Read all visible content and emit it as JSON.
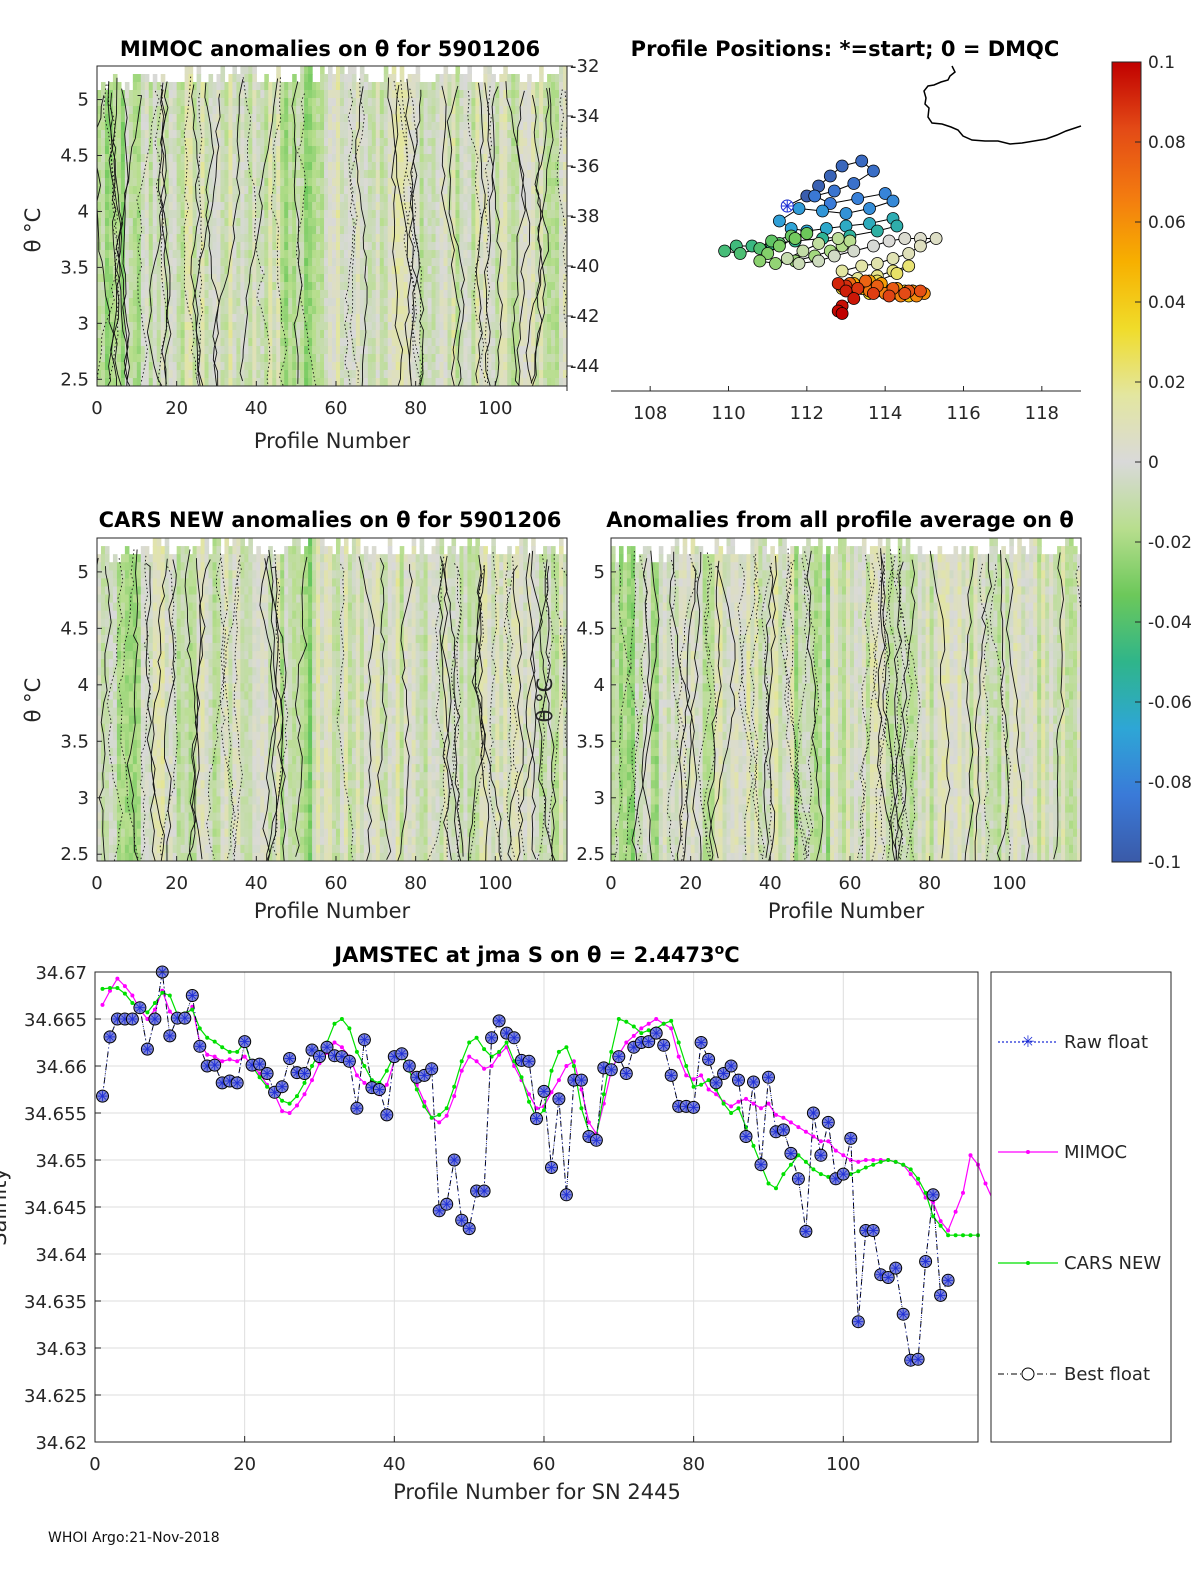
{
  "footer": "WHOI Argo:21-Nov-2018",
  "colors": {
    "raw_float": "#1f2fd6",
    "mimoc": "#ff00ff",
    "cars_new": "#00e000",
    "best_float": "#000000",
    "best_marker_fill": "#7f86d8",
    "coast": "#000000",
    "axis": "#262626",
    "grid": "#dedede"
  },
  "chart_data": [
    {
      "id": "mimoc",
      "type": "heatmap",
      "title": "MIMOC anomalies on θ  for 5901206",
      "xlabel": "Profile Number",
      "ylabel": "θ °C",
      "xlim": [
        0,
        118
      ],
      "ylim": [
        2.44,
        5.3
      ],
      "xticks": [
        "0",
        "20",
        "40",
        "60",
        "80",
        "100"
      ],
      "xtick_values": [
        0,
        20,
        40,
        60,
        80,
        100
      ],
      "yticks": [
        "2.5",
        "3",
        "3.5",
        "4",
        "4.5",
        "5"
      ],
      "ytick_values": [
        2.5,
        3,
        3.5,
        4,
        4.5,
        5
      ],
      "seed": 7
    },
    {
      "id": "positions",
      "type": "scatter",
      "title": "Profile Positions: *=start; 0 = DMQC",
      "xlim": [
        107,
        119
      ],
      "ylim": [
        -45,
        -32
      ],
      "xticks": [
        "108",
        "110",
        "112",
        "114",
        "116",
        "118"
      ],
      "xtick_values": [
        108,
        110,
        112,
        114,
        116,
        118
      ],
      "yticks": [
        "-32",
        "-34",
        "-36",
        "-38",
        "-40",
        "-42",
        "-44"
      ],
      "ytick_values": [
        -32,
        -34,
        -36,
        -38,
        -40,
        -42,
        -44
      ],
      "start": [
        111.5,
        -37.6
      ],
      "lon": [
        111.5,
        112.0,
        112.3,
        112.6,
        112.9,
        113.4,
        113.7,
        113.2,
        112.7,
        112.2,
        112.6,
        113.3,
        114.0,
        114.2,
        113.6,
        113.0,
        112.4,
        111.8,
        111.3,
        111.6,
        112.0,
        112.5,
        113.0,
        113.6,
        114.2,
        114.3,
        113.8,
        113.1,
        112.4,
        111.7,
        111.1,
        110.6,
        110.2,
        109.9,
        110.3,
        110.8,
        111.3,
        111.1,
        111.6,
        112.0,
        111.7,
        111.3,
        111.0,
        110.8,
        111.2,
        111.7,
        112.2,
        112.6,
        112.9,
        113.1,
        112.8,
        112.3,
        111.9,
        111.5,
        111.8,
        112.3,
        112.7,
        113.2,
        113.7,
        114.1,
        114.5,
        114.9,
        115.3,
        114.9,
        114.6,
        114.2,
        113.8,
        113.4,
        112.9,
        113.3,
        113.8,
        114.2,
        114.6,
        114.3,
        113.8,
        113.3,
        112.9,
        113.2,
        113.6,
        114.0,
        114.3,
        114.5,
        114.7,
        114.9,
        114.6,
        114.2,
        113.8,
        113.4,
        113.0,
        113.2,
        113.6,
        113.9,
        114.3,
        114.7,
        115.0,
        114.8,
        114.4,
        114.0,
        113.6,
        113.3,
        112.9,
        113.1,
        113.5,
        113.8,
        114.2,
        114.6,
        114.9,
        114.5,
        114.1,
        113.7,
        113.3,
        113.0,
        112.8,
        113.0,
        113.2,
        112.9,
        112.8,
        112.9
      ],
      "lat": [
        -37.6,
        -37.2,
        -36.8,
        -36.4,
        -36.0,
        -35.8,
        -36.2,
        -36.7,
        -37.0,
        -37.2,
        -37.5,
        -37.3,
        -37.1,
        -37.4,
        -37.7,
        -37.9,
        -37.8,
        -37.7,
        -38.2,
        -38.5,
        -38.6,
        -38.5,
        -38.4,
        -38.3,
        -38.1,
        -38.4,
        -38.6,
        -38.8,
        -38.9,
        -39.0,
        -39.1,
        -39.2,
        -39.2,
        -39.4,
        -39.5,
        -39.3,
        -39.1,
        -39.0,
        -38.8,
        -38.7,
        -38.9,
        -39.2,
        -39.5,
        -39.8,
        -39.9,
        -39.8,
        -39.6,
        -39.4,
        -39.2,
        -39.0,
        -38.9,
        -39.1,
        -39.4,
        -39.7,
        -39.9,
        -39.8,
        -39.6,
        -39.4,
        -39.2,
        -39.0,
        -38.9,
        -38.9,
        -38.9,
        -39.2,
        -39.5,
        -39.7,
        -39.9,
        -40.0,
        -40.2,
        -40.5,
        -40.4,
        -40.2,
        -40.0,
        -40.3,
        -40.6,
        -40.8,
        -40.9,
        -41.0,
        -41.1,
        -41.0,
        -40.9,
        -41.0,
        -41.0,
        -41.1,
        -41.2,
        -41.1,
        -41.0,
        -40.9,
        -40.8,
        -40.7,
        -40.6,
        -40.7,
        -40.9,
        -41.0,
        -41.1,
        -41.2,
        -41.2,
        -41.1,
        -41.0,
        -40.9,
        -40.8,
        -40.7,
        -40.6,
        -40.8,
        -40.9,
        -41.0,
        -41.0,
        -41.1,
        -41.2,
        -41.1,
        -40.9,
        -40.8,
        -40.7,
        -41.0,
        -41.3,
        -41.6,
        -41.8,
        -41.9
      ],
      "colorbar": {
        "ticks": [
          "0.1",
          "0.08",
          "0.06",
          "0.04",
          "0.02",
          "0",
          "-0.02",
          "-0.04",
          "-0.06",
          "-0.08",
          "-0.1"
        ],
        "tick_values": [
          0.1,
          0.08,
          0.06,
          0.04,
          0.02,
          0,
          -0.02,
          -0.04,
          -0.06,
          -0.08,
          -0.1
        ],
        "range": [
          -0.1,
          0.1
        ],
        "stops": [
          "#3a5aa8",
          "#3a7ad8",
          "#2ea6d6",
          "#2fb58a",
          "#6cc85a",
          "#b8de8e",
          "#d9d9d9",
          "#e3e6a0",
          "#f0dc2a",
          "#f7b000",
          "#f37a10",
          "#e34a16",
          "#c00000"
        ]
      }
    },
    {
      "id": "cars",
      "type": "heatmap",
      "title": "CARS NEW anomalies on θ for 5901206",
      "xlabel": "Profile Number",
      "ylabel": "θ °C",
      "xlim": [
        0,
        118
      ],
      "ylim": [
        2.44,
        5.3
      ],
      "xticks": [
        "0",
        "20",
        "40",
        "60",
        "80",
        "100"
      ],
      "xtick_values": [
        0,
        20,
        40,
        60,
        80,
        100
      ],
      "yticks": [
        "2.5",
        "3",
        "3.5",
        "4",
        "4.5",
        "5"
      ],
      "ytick_values": [
        2.5,
        3,
        3.5,
        4,
        4.5,
        5
      ],
      "seed": 19
    },
    {
      "id": "allavg",
      "type": "heatmap",
      "title": "Anomalies from all profile average on θ",
      "xlabel": "Profile Number",
      "ylabel": "θ °C",
      "xlim": [
        0,
        118
      ],
      "ylim": [
        2.44,
        5.3
      ],
      "xticks": [
        "0",
        "20",
        "40",
        "60",
        "80",
        "100"
      ],
      "xtick_values": [
        0,
        20,
        40,
        60,
        80,
        100
      ],
      "yticks": [
        "2.5",
        "3",
        "3.5",
        "4",
        "4.5",
        "5"
      ],
      "ytick_values": [
        2.5,
        3,
        3.5,
        4,
        4.5,
        5
      ],
      "seed": 31
    },
    {
      "id": "salinity",
      "type": "line",
      "title": "JAMSTEC at jma S on θ = 2.4473°C",
      "title_prefix": "JAMSTEC at jma S on θ = 2.4473",
      "title_sup": "o",
      "title_suffix": "C",
      "xlabel": "Profile Number for SN 2445",
      "ylabel": "Salinity",
      "xlim": [
        0,
        118
      ],
      "ylim": [
        34.62,
        34.67
      ],
      "xticks": [
        "0",
        "20",
        "40",
        "60",
        "80",
        "100"
      ],
      "xtick_values": [
        0,
        20,
        40,
        60,
        80,
        100
      ],
      "yticks": [
        "34.62",
        "34.625",
        "34.63",
        "34.635",
        "34.64",
        "34.645",
        "34.65",
        "34.655",
        "34.66",
        "34.665",
        "34.67"
      ],
      "ytick_values": [
        34.62,
        34.625,
        34.63,
        34.635,
        34.64,
        34.645,
        34.65,
        34.655,
        34.66,
        34.665,
        34.67
      ],
      "legend": [
        "Raw float",
        "MIMOC",
        "CARS NEW",
        "Best float"
      ],
      "series": [
        {
          "name": "Raw float",
          "values": [
            34.6568,
            34.6631,
            34.665,
            34.665,
            34.665,
            34.6662,
            34.6618,
            34.665,
            34.67,
            34.6632,
            34.6651,
            34.6651,
            34.6675,
            34.6621,
            34.66,
            34.6601,
            34.6582,
            34.6584,
            34.6582,
            34.6626,
            34.6601,
            34.6602,
            34.6592,
            34.6572,
            34.6578,
            34.6608,
            34.6593,
            34.6592,
            34.6617,
            34.661,
            34.662,
            34.6611,
            34.661,
            34.6605,
            34.6555,
            34.6628,
            34.6577,
            34.6575,
            34.6548,
            34.661,
            34.6613,
            34.66,
            34.6588,
            34.659,
            34.6597,
            34.6446,
            34.6453,
            34.65,
            34.6436,
            34.6427,
            34.6467,
            34.6467,
            34.663,
            34.6648,
            34.6635,
            34.663,
            34.6606,
            34.6605,
            34.6544,
            34.6573,
            34.6492,
            34.6565,
            34.6463,
            34.6585,
            34.6585,
            34.6525,
            34.6521,
            34.6598,
            34.6596,
            34.661,
            34.6592,
            34.662,
            34.6625,
            34.6626,
            34.6635,
            34.6622,
            34.659,
            34.6557,
            34.6557,
            34.6556,
            34.6625,
            34.6607,
            34.6582,
            34.6592,
            34.66,
            34.6585,
            34.6525,
            34.6583,
            34.6495,
            34.6588,
            34.653,
            34.6532,
            34.6507,
            34.648,
            34.6424,
            34.655,
            34.6505,
            34.654,
            34.648,
            34.6485,
            34.6523,
            34.6328,
            34.6425,
            34.6425,
            34.6378,
            34.6375,
            34.6385,
            34.6336,
            34.6287,
            34.6288,
            34.6392,
            34.6463,
            34.6356,
            34.6372
          ]
        },
        {
          "name": "MIMOC",
          "values": [
            34.6665,
            34.668,
            34.6693,
            34.6685,
            34.6675,
            34.666,
            34.665,
            34.666,
            34.668,
            34.6658,
            34.665,
            34.6652,
            34.6663,
            34.6625,
            34.6612,
            34.661,
            34.6605,
            34.6607,
            34.6605,
            34.661,
            34.66,
            34.6592,
            34.658,
            34.657,
            34.6552,
            34.655,
            34.6558,
            34.657,
            34.6585,
            34.6603,
            34.6614,
            34.6625,
            34.662,
            34.661,
            34.659,
            34.6582,
            34.6578,
            34.657,
            34.658,
            34.6605,
            34.6612,
            34.66,
            34.658,
            34.6562,
            34.6545,
            34.654,
            34.6547,
            34.6568,
            34.6595,
            34.661,
            34.6605,
            34.6597,
            34.66,
            34.6612,
            34.662,
            34.66,
            34.6585,
            34.657,
            34.6555,
            34.6557,
            34.6572,
            34.6585,
            34.66,
            34.6605,
            34.6575,
            34.654,
            34.6528,
            34.656,
            34.6595,
            34.6612,
            34.6625,
            34.6632,
            34.664,
            34.6645,
            34.665,
            34.6645,
            34.664,
            34.661,
            34.659,
            34.6586,
            34.659,
            34.6575,
            34.657,
            34.6562,
            34.6557,
            34.6562,
            34.6565,
            34.656,
            34.6555,
            34.656,
            34.6548,
            34.6545,
            34.654,
            34.6535,
            34.653,
            34.6525,
            34.652,
            34.652,
            34.651,
            34.6505,
            34.65,
            34.6498,
            34.65,
            34.65,
            34.65,
            34.65,
            34.6498,
            34.6495,
            34.6485,
            34.6475,
            34.646,
            34.6455,
            34.6435,
            34.6425,
            34.6445,
            34.6465,
            34.6505,
            34.6495,
            34.6475,
            34.6457
          ]
        },
        {
          "name": "CARS NEW",
          "values": [
            34.6682,
            34.6683,
            34.6683,
            34.6677,
            34.6667,
            34.6662,
            34.6657,
            34.6667,
            34.6678,
            34.6675,
            34.6655,
            34.6656,
            34.666,
            34.664,
            34.663,
            34.6626,
            34.662,
            34.6615,
            34.6615,
            34.6625,
            34.66,
            34.6588,
            34.6578,
            34.6572,
            34.6563,
            34.656,
            34.6568,
            34.6582,
            34.66,
            34.6615,
            34.6625,
            34.6645,
            34.665,
            34.664,
            34.6615,
            34.66,
            34.6585,
            34.6582,
            34.6595,
            34.6612,
            34.6615,
            34.6595,
            34.6575,
            34.6557,
            34.6545,
            34.6548,
            34.6555,
            34.6578,
            34.6605,
            34.6625,
            34.663,
            34.6618,
            34.661,
            34.6615,
            34.6625,
            34.6605,
            34.6588,
            34.6562,
            34.6545,
            34.6553,
            34.6595,
            34.6615,
            34.662,
            34.66,
            34.6555,
            34.653,
            34.6525,
            34.657,
            34.6615,
            34.665,
            34.6647,
            34.6642,
            34.6635,
            34.6638,
            34.664,
            34.6645,
            34.6648,
            34.6625,
            34.66,
            34.6578,
            34.658,
            34.6585,
            34.6575,
            34.656,
            34.655,
            34.6555,
            34.6535,
            34.6515,
            34.6495,
            34.6475,
            34.647,
            34.6485,
            34.6495,
            34.6505,
            34.6498,
            34.649,
            34.6485,
            34.6482,
            34.648,
            34.6482,
            34.6485,
            34.6488,
            34.6492,
            34.6495,
            34.6498,
            34.65,
            34.6498,
            34.6495,
            34.649,
            34.648,
            34.6465,
            34.644,
            34.643,
            34.642,
            34.642,
            34.642,
            34.642,
            34.642
          ]
        }
      ]
    }
  ]
}
